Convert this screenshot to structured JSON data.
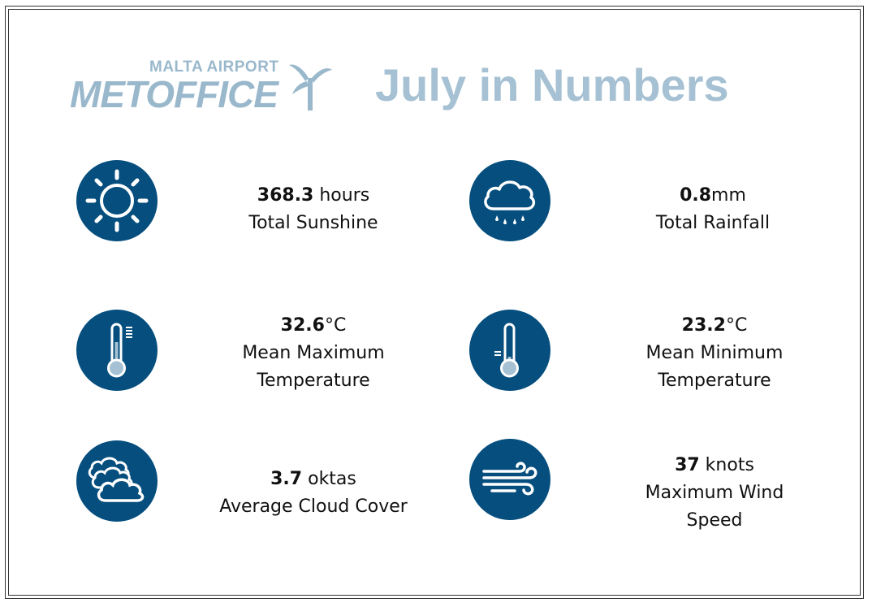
{
  "header": {
    "logo_top": "MALTA AIRPORT",
    "logo_main": "METOFFICE",
    "title": "July in Numbers"
  },
  "stats": {
    "sunshine": {
      "value": "368.3",
      "unit": " hours",
      "label": "Total Sunshine",
      "icon": "sun-icon"
    },
    "rainfall": {
      "value": "0.8",
      "unit": "mm",
      "label": "Total Rainfall",
      "icon": "rain-cloud-icon"
    },
    "max_temp": {
      "value": "32.6",
      "unit": "°C",
      "label_line1": "Mean Maximum",
      "label_line2": "Temperature",
      "icon": "thermometer-high-icon"
    },
    "min_temp": {
      "value": "23.2",
      "unit": "°C",
      "label_line1": "Mean Minimum",
      "label_line2": "Temperature",
      "icon": "thermometer-low-icon"
    },
    "cloud": {
      "value": "3.7",
      "unit": " oktas",
      "label": "Average Cloud Cover",
      "icon": "clouds-icon"
    },
    "wind": {
      "value": "37",
      "unit": " knots",
      "label_line1": "Maximum Wind",
      "label_line2": "Speed",
      "icon": "wind-icon"
    }
  },
  "colors": {
    "icon_background": "#054e7e",
    "header_text": "#9ab8cc"
  }
}
